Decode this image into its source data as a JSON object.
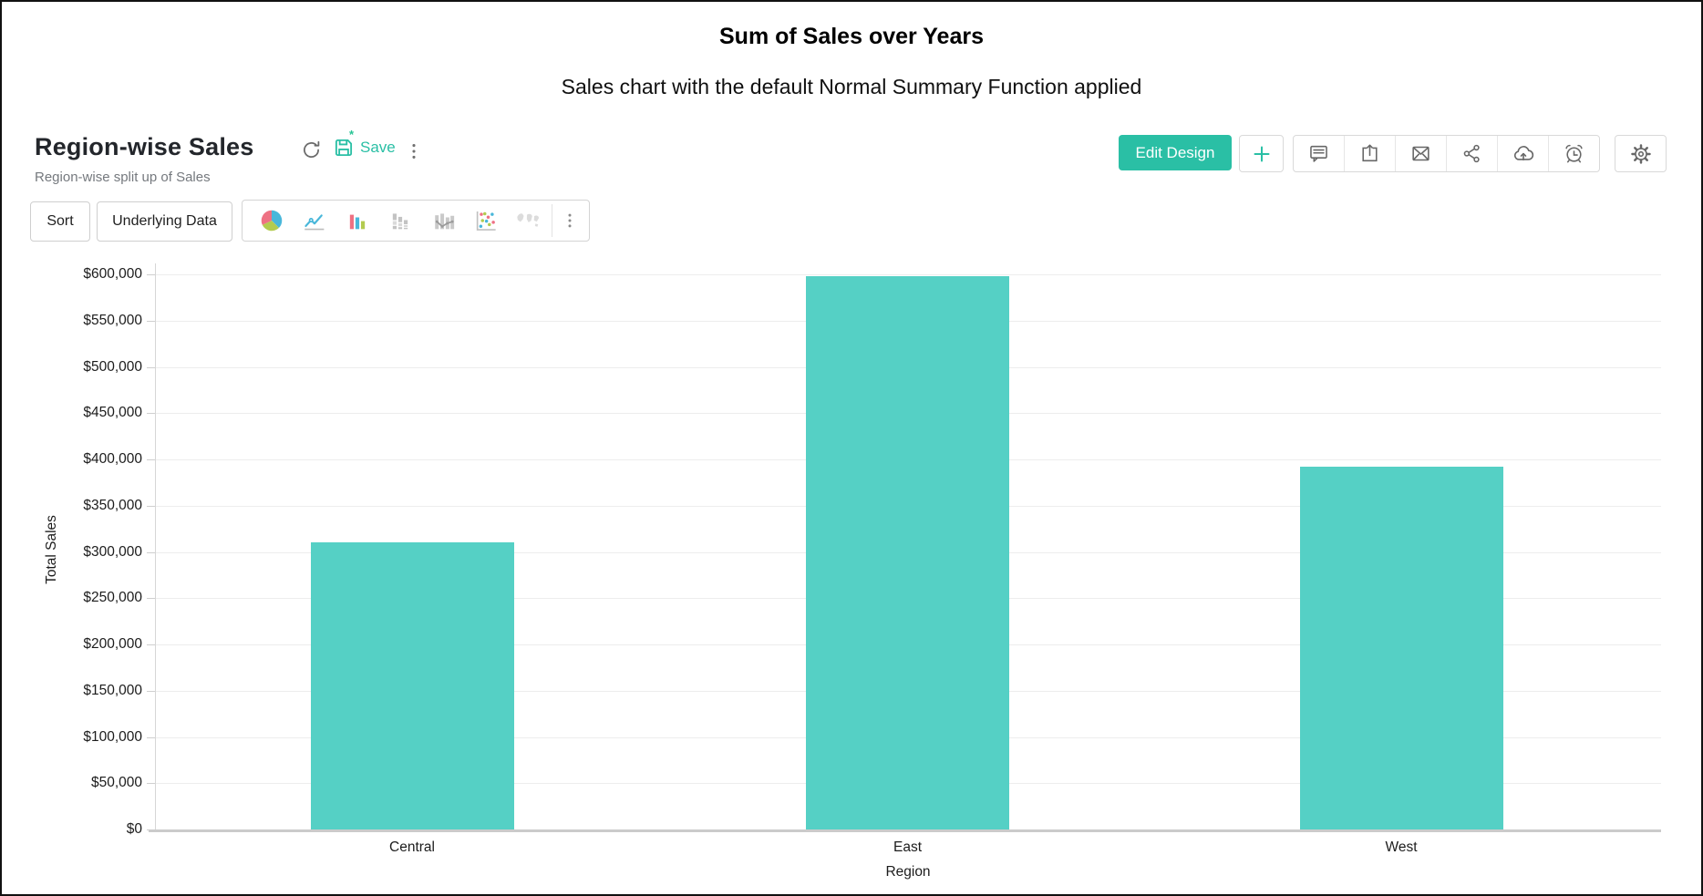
{
  "page": {
    "title": "Sum of Sales over Years",
    "subtitle": "Sales chart with the default Normal Summary Function applied"
  },
  "header": {
    "title": "Region-wise Sales",
    "subtitle": "Region-wise split up of Sales",
    "refresh_icon": "refresh-icon",
    "save_label": "Save",
    "save_icon": "save-icon",
    "unsaved_marker": "*",
    "menu_icon": "kebab-menu-icon",
    "edit_design_label": "Edit Design",
    "plus_icon": "plus-icon",
    "action_icons": [
      "comment-icon",
      "export-icon",
      "email-icon",
      "share-icon",
      "cloud-upload-icon",
      "alarm-icon"
    ],
    "settings_icon": "gear-icon"
  },
  "toolbar": {
    "sort_label": "Sort",
    "underlying_data_label": "Underlying Data",
    "chart_type_icons": [
      "pie-chart-icon",
      "line-chart-icon",
      "column-chart-icon",
      "stacked-column-chart-icon",
      "combo-chart-icon",
      "scatter-chart-icon",
      "map-chart-icon"
    ],
    "more_icon": "kebab-menu-icon"
  },
  "chart_data": {
    "type": "bar",
    "categories": [
      "Central",
      "East",
      "West"
    ],
    "values": [
      310000,
      598000,
      392000
    ],
    "title": "",
    "xlabel": "Region",
    "ylabel": "Total Sales",
    "ylim": [
      0,
      600000
    ],
    "ytick_step": 50000,
    "ytick_labels": [
      "$0",
      "$50,000",
      "$100,000",
      "$150,000",
      "$200,000",
      "$250,000",
      "$300,000",
      "$350,000",
      "$400,000",
      "$450,000",
      "$500,000",
      "$550,000",
      "$600,000"
    ],
    "grid": true,
    "legend": "none",
    "bar_color": "#55d0c5"
  },
  "colors": {
    "accent": "#2abfa5",
    "bar": "#55d0c5",
    "icon_gray": "#6b6b6b"
  }
}
